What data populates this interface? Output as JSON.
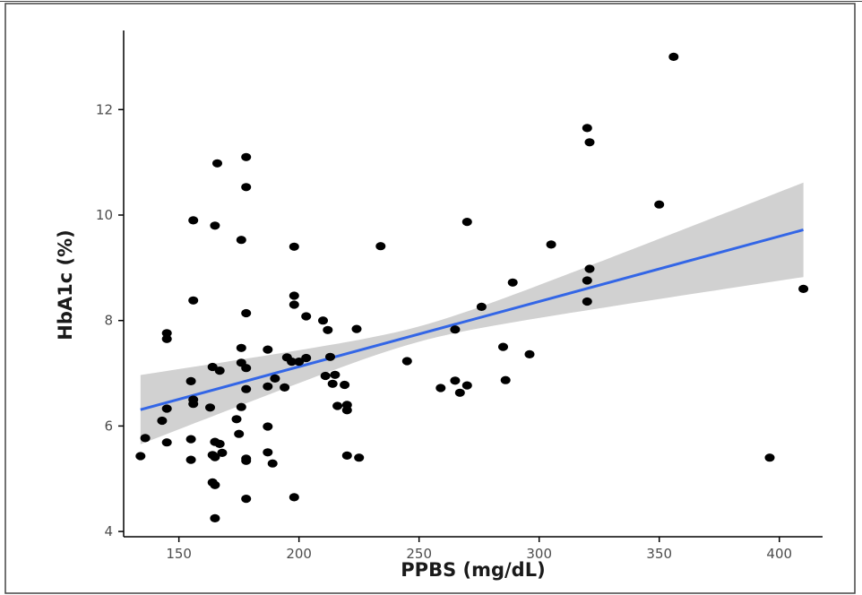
{
  "chart_data": {
    "type": "scatter",
    "title": "",
    "xlabel": "PPBS (mg/dL)",
    "ylabel": "HbA1c (%)",
    "xlim": [
      127,
      418
    ],
    "ylim": [
      3.9,
      13.5
    ],
    "x_ticks": [
      150,
      200,
      250,
      300,
      350,
      400
    ],
    "y_ticks": [
      4,
      6,
      8,
      10,
      12
    ],
    "grid": false,
    "legend": "none",
    "points": [
      [
        134,
        5.43
      ],
      [
        136,
        5.77
      ],
      [
        143,
        6.1
      ],
      [
        145,
        7.76
      ],
      [
        145,
        7.65
      ],
      [
        145,
        6.33
      ],
      [
        145,
        5.69
      ],
      [
        156,
        9.9
      ],
      [
        156,
        8.38
      ],
      [
        155,
        6.85
      ],
      [
        156,
        6.5
      ],
      [
        156,
        6.42
      ],
      [
        155,
        5.75
      ],
      [
        155,
        5.36
      ],
      [
        165,
        9.8
      ],
      [
        166,
        10.98
      ],
      [
        164,
        7.12
      ],
      [
        167,
        7.05
      ],
      [
        163,
        6.35
      ],
      [
        165,
        5.7
      ],
      [
        167,
        5.66
      ],
      [
        164,
        5.45
      ],
      [
        168,
        5.49
      ],
      [
        165,
        5.41
      ],
      [
        164,
        4.93
      ],
      [
        165,
        4.88
      ],
      [
        165,
        4.25
      ],
      [
        178,
        11.1
      ],
      [
        178,
        10.53
      ],
      [
        176,
        9.53
      ],
      [
        178,
        8.14
      ],
      [
        176,
        7.48
      ],
      [
        176,
        7.2
      ],
      [
        178,
        7.1
      ],
      [
        178,
        6.7
      ],
      [
        176,
        6.36
      ],
      [
        174,
        6.13
      ],
      [
        175,
        5.85
      ],
      [
        178,
        5.38
      ],
      [
        178,
        5.34
      ],
      [
        178,
        4.62
      ],
      [
        187,
        7.45
      ],
      [
        190,
        6.9
      ],
      [
        187,
        6.75
      ],
      [
        187,
        5.99
      ],
      [
        187,
        5.5
      ],
      [
        189,
        5.29
      ],
      [
        198,
        9.4
      ],
      [
        198,
        8.47
      ],
      [
        198,
        8.3
      ],
      [
        195,
        7.3
      ],
      [
        197,
        7.22
      ],
      [
        200,
        7.22
      ],
      [
        194,
        6.73
      ],
      [
        198,
        4.65
      ],
      [
        203,
        8.08
      ],
      [
        203,
        7.29
      ],
      [
        210,
        8.0
      ],
      [
        212,
        7.82
      ],
      [
        213,
        7.31
      ],
      [
        211,
        6.95
      ],
      [
        215,
        6.97
      ],
      [
        214,
        6.8
      ],
      [
        216,
        6.38
      ],
      [
        219,
        6.78
      ],
      [
        220,
        6.4
      ],
      [
        220,
        6.3
      ],
      [
        220,
        5.44
      ],
      [
        224,
        7.84
      ],
      [
        225,
        5.4
      ],
      [
        234,
        9.41
      ],
      [
        245,
        7.23
      ],
      [
        259,
        6.72
      ],
      [
        265,
        7.83
      ],
      [
        265,
        6.86
      ],
      [
        267,
        6.63
      ],
      [
        270,
        9.87
      ],
      [
        270,
        6.77
      ],
      [
        276,
        8.26
      ],
      [
        285,
        7.5
      ],
      [
        286,
        6.87
      ],
      [
        289,
        8.72
      ],
      [
        296,
        7.36
      ],
      [
        305,
        9.44
      ],
      [
        320,
        11.65
      ],
      [
        321,
        11.38
      ],
      [
        321,
        8.98
      ],
      [
        320,
        8.76
      ],
      [
        320,
        8.36
      ],
      [
        350,
        10.2
      ],
      [
        356,
        13.0
      ],
      [
        396,
        5.4
      ],
      [
        410,
        8.6
      ]
    ],
    "trend_line": {
      "type": "linear",
      "x": [
        134,
        410
      ],
      "y": [
        6.31,
        9.72
      ],
      "ci_lower": [
        5.82,
        8.64
      ],
      "ci_upper": [
        6.8,
        10.8
      ],
      "x_mid": 250,
      "ci_mid": [
        7.57,
        7.86
      ],
      "color": "#3366e6",
      "band_color": "#c9c9c9"
    },
    "point_color": "#000000"
  }
}
